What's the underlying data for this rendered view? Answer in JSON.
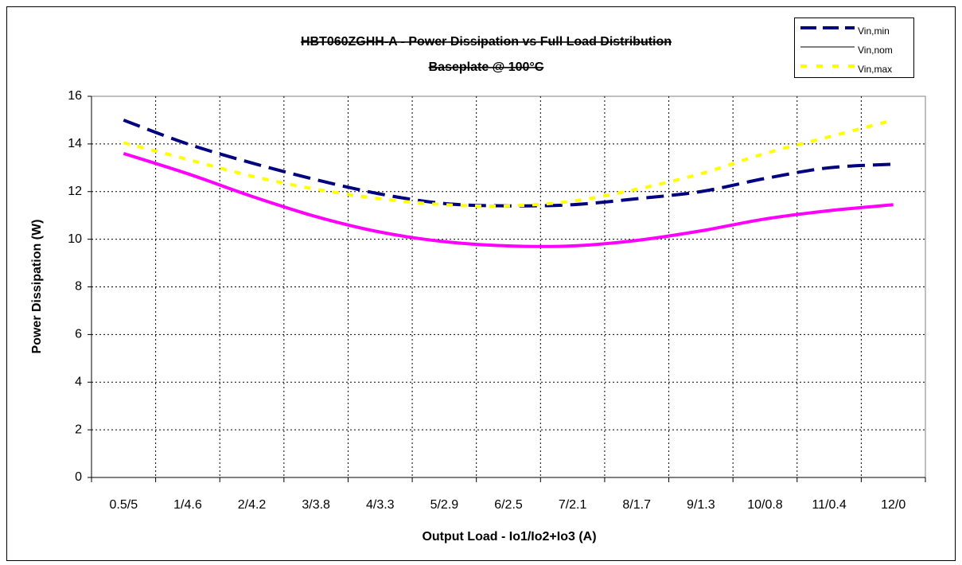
{
  "chart_data": {
    "type": "line",
    "title": "HBT060ZGHH-A - Power Dissipation vs Full Load Distribution",
    "subtitle": "Baseplate @ 100°C",
    "x_label": "Output Load - Io1/Io2+Io3 (A)",
    "y_label": "Power Dissipation (W)",
    "categories": [
      "0.5/5",
      "1/4.6",
      "2/4.2",
      "3/3.8",
      "4/3.3",
      "5/2.9",
      "6/2.5",
      "7/2.1",
      "8/1.7",
      "9/1.3",
      "10/0.8",
      "11/0.4",
      "12/0"
    ],
    "series": [
      {
        "name": "Vin,min",
        "color": "#000080",
        "legend_color": "#000080",
        "dash": "dashed",
        "values": [
          15.0,
          14.0,
          13.2,
          12.5,
          11.9,
          11.5,
          11.4,
          11.45,
          11.7,
          12.0,
          12.55,
          13.0,
          13.15
        ]
      },
      {
        "name": "Vin,nom",
        "color": "#ff00ff",
        "legend_color": "#000000",
        "dash": "solid",
        "values": [
          13.6,
          12.75,
          11.8,
          10.95,
          10.3,
          9.9,
          9.72,
          9.72,
          9.95,
          10.35,
          10.85,
          11.2,
          11.45
        ]
      },
      {
        "name": "Vin,max",
        "color": "#ffff00",
        "legend_color": "#ffff00",
        "dash": "dotted",
        "values": [
          14.05,
          13.35,
          12.65,
          12.1,
          11.7,
          11.45,
          11.4,
          11.6,
          12.1,
          12.75,
          13.6,
          14.3,
          15.0
        ]
      }
    ],
    "ylim": [
      0,
      16
    ],
    "yticks": [
      0,
      2,
      4,
      6,
      8,
      10,
      12,
      14,
      16
    ],
    "grid": true,
    "legend": "top-right"
  }
}
